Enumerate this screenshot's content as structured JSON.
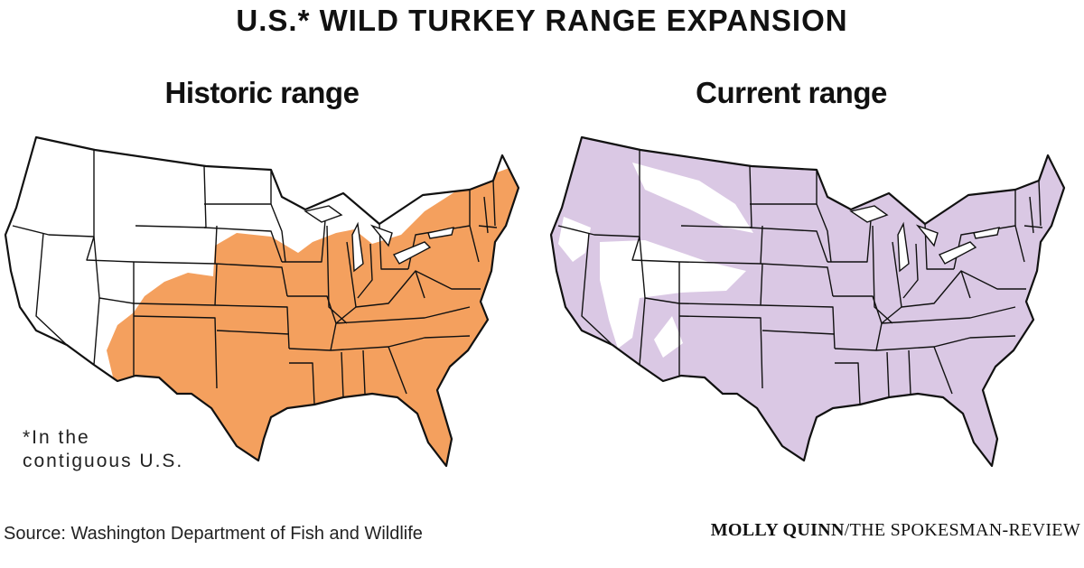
{
  "title": "U.S.* WILD TURKEY RANGE EXPANSION",
  "maps": {
    "historic": {
      "heading": "Historic range",
      "fill_color": "#f4a05e"
    },
    "current": {
      "heading": "Current range",
      "fill_color": "#dac8e4"
    }
  },
  "footnote": {
    "line1": "*In the",
    "line2": "contiguous U.S."
  },
  "source": "Source: Washington Department of Fish and Wildlife",
  "credit": {
    "author": "MOLLY QUINN",
    "separator": "/",
    "outlet": "THE SPOKESMAN-REVIEW"
  }
}
